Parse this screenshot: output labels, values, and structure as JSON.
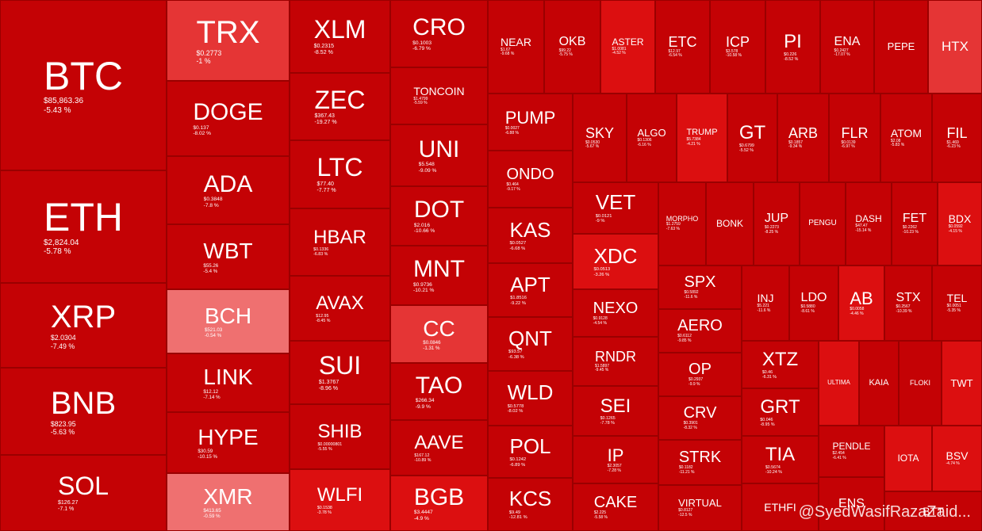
{
  "tiles": [
    {
      "name": "BTC",
      "price": "$85,863.36",
      "change": "-5.43 %"
    },
    {
      "name": "ETH",
      "price": "$2,824.04",
      "change": "-5.78 %"
    },
    {
      "name": "XRP",
      "price": "$2.0304",
      "change": "-7.49 %"
    },
    {
      "name": "BNB",
      "price": "$823.95",
      "change": "-5.63 %"
    },
    {
      "name": "SOL",
      "price": "$126.27",
      "change": "-7.1 %"
    },
    {
      "name": "TRX",
      "price": "$0.2773",
      "change": "-1 %"
    },
    {
      "name": "DOGE",
      "price": "$0.137",
      "change": "-8.02 %"
    },
    {
      "name": "ADA",
      "price": "$0.3848",
      "change": "-7.8 %"
    },
    {
      "name": "WBT",
      "price": "$55.26",
      "change": "-5.4 %"
    },
    {
      "name": "BCH",
      "price": "$521.03",
      "change": "-0.54 %"
    },
    {
      "name": "LINK",
      "price": "$12.12",
      "change": "-7.14 %"
    },
    {
      "name": "HYPE",
      "price": "$30.59",
      "change": "-10.15 %"
    },
    {
      "name": "XMR",
      "price": "$413.65",
      "change": "-0.59 %"
    },
    {
      "name": "XLM",
      "price": "$0.2315",
      "change": "-8.52 %"
    },
    {
      "name": "ZEC",
      "price": "$367.43",
      "change": "-19.27 %"
    },
    {
      "name": "LTC",
      "price": "$77.40",
      "change": "-7.77 %"
    },
    {
      "name": "HBAR",
      "price": "$0.1336",
      "change": "-6.83 %"
    },
    {
      "name": "AVAX",
      "price": "$12.95",
      "change": "-8.45 %"
    },
    {
      "name": "SUI",
      "price": "$1.3767",
      "change": "-8.96 %"
    },
    {
      "name": "SHIB",
      "price": "$0.00000801",
      "change": "-5.55 %"
    },
    {
      "name": "WLFI",
      "price": "$0.1538",
      "change": "-3.78 %"
    },
    {
      "name": "CRO",
      "price": "$0.1003",
      "change": "-6.79 %"
    },
    {
      "name": "TONCOIN",
      "price": "$1.4799",
      "change": "-5.59 %"
    },
    {
      "name": "UNI",
      "price": "$5.548",
      "change": "-9.09 %"
    },
    {
      "name": "DOT",
      "price": "$2.016",
      "change": "-10.66 %"
    },
    {
      "name": "MNT",
      "price": "$0.9736",
      "change": "-10.21 %"
    },
    {
      "name": "CC",
      "price": "$0.0846",
      "change": "-1.31 %"
    },
    {
      "name": "TAO",
      "price": "$266.34",
      "change": "-9.9 %"
    },
    {
      "name": "AAVE",
      "price": "$167.12",
      "change": "-10.89 %"
    },
    {
      "name": "BGB",
      "price": "$3.4447",
      "change": "-4.9 %"
    },
    {
      "name": "NEAR",
      "price": "$1.67",
      "change": "-9.68 %"
    },
    {
      "name": "OKB",
      "price": "$99.22",
      "change": "-5.75 %"
    },
    {
      "name": "ASTER",
      "price": "$1.0081",
      "change": "-4.52 %"
    },
    {
      "name": "ETC",
      "price": "$12.97",
      "change": "-6.54 %"
    },
    {
      "name": "ICP",
      "price": "$3.578",
      "change": "-10.58 %"
    },
    {
      "name": "PI",
      "price": "$0.226",
      "change": "-8.52 %"
    },
    {
      "name": "ENA",
      "price": "$0.2427",
      "change": "-17.07 %"
    },
    {
      "name": "PEPE"
    },
    {
      "name": "HTX"
    },
    {
      "name": "PUMP",
      "price": "$0.0027",
      "change": "-6.88 %"
    },
    {
      "name": "ONDO",
      "price": "$0.464",
      "change": "-9.17 %"
    },
    {
      "name": "KAS",
      "price": "$0.0527",
      "change": "-6.68 %"
    },
    {
      "name": "APT",
      "price": "$1.8516",
      "change": "-9.22 %"
    },
    {
      "name": "QNT",
      "price": "$93.57",
      "change": "-6.38 %"
    },
    {
      "name": "WLD",
      "price": "$0.5778",
      "change": "-8.02 %"
    },
    {
      "name": "POL",
      "price": "$0.1242",
      "change": "-6.89 %"
    },
    {
      "name": "KCS",
      "price": "$9.49",
      "change": "-12.81 %"
    },
    {
      "name": "SKY",
      "price": "$0.0530",
      "change": "-5.67 %"
    },
    {
      "name": "ALGO",
      "price": "$0.1306",
      "change": "-6.16 %"
    },
    {
      "name": "TRUMP",
      "price": "$5.7384",
      "change": "-4.21 %"
    },
    {
      "name": "GT",
      "price": "$0.6799",
      "change": "-5.52 %"
    },
    {
      "name": "ARB",
      "price": "$0.1857",
      "change": "-9.34 %"
    },
    {
      "name": "FLR",
      "price": "$0.0139",
      "change": "-6.97 %"
    },
    {
      "name": "ATOM",
      "price": "$2.08",
      "change": "-5.83 %"
    },
    {
      "name": "FIL",
      "price": "$1.469",
      "change": "-6.23 %"
    },
    {
      "name": "VET",
      "price": "$0.0121",
      "change": "-9 %"
    },
    {
      "name": "XDC",
      "price": "$0.0513",
      "change": "-3.26 %"
    },
    {
      "name": "NEXO",
      "price": "$0.9128",
      "change": "-4.54 %"
    },
    {
      "name": "RNDR",
      "price": "$1.5897",
      "change": "-9.45 %"
    },
    {
      "name": "SEI",
      "price": "$0.1265",
      "change": "-7.78 %"
    },
    {
      "name": "IP",
      "price": "$2.3057",
      "change": "-7.28 %"
    },
    {
      "name": "CAKE",
      "price": "$2.225",
      "change": "-5.58 %"
    },
    {
      "name": "MORPHO",
      "price": "$1.2759",
      "change": "-7.63 %"
    },
    {
      "name": "BONK"
    },
    {
      "name": "JUP",
      "price": "$0.2273",
      "change": "-8.25 %"
    },
    {
      "name": "PENGU"
    },
    {
      "name": "DASH",
      "price": "$47.47",
      "change": "-15.14 %"
    },
    {
      "name": "FET",
      "price": "$0.2262",
      "change": "-10.23 %"
    },
    {
      "name": "BDX",
      "price": "$0.0592",
      "change": "-4.15 %"
    },
    {
      "name": "SPX",
      "price": "$0.5892",
      "change": "-11.6 %"
    },
    {
      "name": "AERO",
      "price": "$0.6112",
      "change": "-9.85 %"
    },
    {
      "name": "OP",
      "price": "$0.2937",
      "change": "-9.9 %"
    },
    {
      "name": "CRV",
      "price": "$0.3901",
      "change": "-8.32 %"
    },
    {
      "name": "STRK",
      "price": "$0.1182",
      "change": "-11.21 %"
    },
    {
      "name": "VIRTUAL",
      "price": "$0.8127",
      "change": "-12.5 %"
    },
    {
      "name": "INJ",
      "price": "$5.221",
      "change": "-11.6 %"
    },
    {
      "name": "LDO",
      "price": "$0.5880",
      "change": "-8.61 %"
    },
    {
      "name": "AB",
      "price": "$0.0058",
      "change": "-4.46 %"
    },
    {
      "name": "STX",
      "price": "$0.2567",
      "change": "-10.39 %"
    },
    {
      "name": "TEL",
      "price": "$0.0051",
      "change": "-5.35 %"
    },
    {
      "name": "XTZ",
      "price": "$0.46",
      "change": "-6.31 %"
    },
    {
      "name": "GRT",
      "price": "$0.046",
      "change": "-8.95 %"
    },
    {
      "name": "TIA",
      "price": "$0.5674",
      "change": "-10.24 %"
    },
    {
      "name": "ETHFI"
    },
    {
      "name": "ULTIMA"
    },
    {
      "name": "KAIA"
    },
    {
      "name": "FLOKI"
    },
    {
      "name": "TWT"
    },
    {
      "name": "PENDLE",
      "price": "$2.454",
      "change": "-6.41 %"
    },
    {
      "name": "IOTA"
    },
    {
      "name": "BSV",
      "change": "-4.74 %"
    },
    {
      "name": "ENS"
    },
    {
      "name": "BTT"
    }
  ],
  "watermark": "@SyedWasifRazaZaid..."
}
